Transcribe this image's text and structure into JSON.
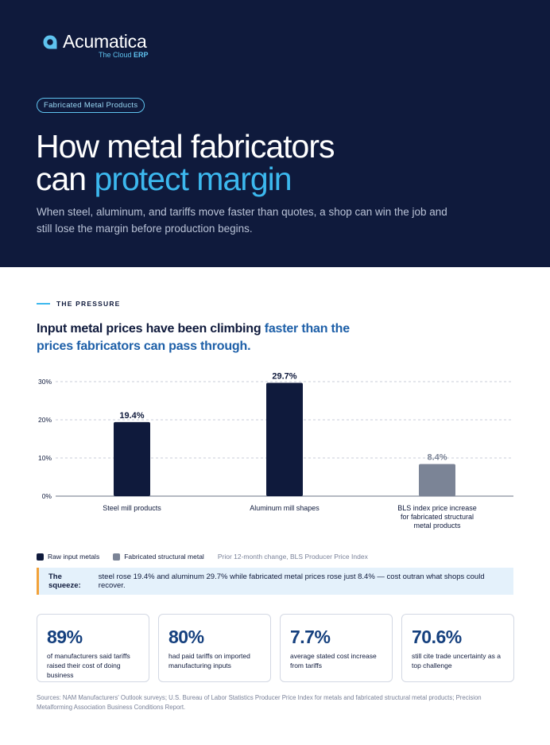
{
  "brand": {
    "name": "Acumatica",
    "tagline_prefix": "The Cloud",
    "tagline_bold": "ERP"
  },
  "hero": {
    "pill": "Fabricated Metal Products",
    "title_line1": "How metal fabricators",
    "title_line2_plain": "can",
    "title_line2_accent": "protect margin",
    "lede": "When steel, aluminum, and tariffs move faster than quotes, a shop can win the job and still lose the margin before production begins."
  },
  "section": {
    "label": "THE PRESSURE",
    "heading_plain": "Input metal prices have been climbing",
    "heading_accent": "faster than the prices fabricators can pass through."
  },
  "chart_data": {
    "type": "bar",
    "categories": [
      "Steel mill products",
      "Aluminum mill shapes",
      "BLS index price increase for fabricated structural metal products"
    ],
    "values": [
      19.4,
      29.7,
      8.4
    ],
    "value_labels": [
      "19.4%",
      "29.7%",
      "8.4%"
    ],
    "series_of_bar": [
      "raw",
      "raw",
      "fab"
    ],
    "y_ticks": [
      "0%",
      "10%",
      "20%",
      "30%"
    ],
    "y_tick_values": [
      0,
      10,
      20,
      30
    ],
    "ylim": [
      0,
      30
    ],
    "grid": true,
    "colors": {
      "raw": "#0f1a3c",
      "fab": "#7b8496",
      "raw_label": "#0f1a3c",
      "fab_label": "#7b8496"
    },
    "legend": [
      {
        "name": "Raw input metals",
        "color": "#0f1a3c"
      },
      {
        "name": "Fabricated structural metal",
        "color": "#7b8496"
      }
    ],
    "note": "Prior 12-month change, BLS Producer Price Index"
  },
  "squeeze": {
    "lead": "The squeeze:",
    "text": "steel rose 19.4% and aluminum 29.7% while fabricated metal prices rose just 8.4% — cost outran what shops could recover."
  },
  "stats": [
    {
      "value": "89%",
      "desc": "of manufacturers said tariffs raised their cost of doing business"
    },
    {
      "value": "80%",
      "desc": "had paid tariffs on imported manufacturing inputs"
    },
    {
      "value": "7.7%",
      "desc": "average stated cost increase from tariffs"
    },
    {
      "value": "70.6%",
      "desc": "still cite trade uncertainty as a top challenge"
    }
  ],
  "sources": "Sources: NAM Manufacturers' Outlook surveys; U.S. Bureau of Labor Statistics Producer Price Index for metals and fabricated structural metal products; Precision Metalforming Association Business Conditions Report.",
  "colors": {
    "navy": "#0f1a3c",
    "accent_blue": "#3cb8ee",
    "stat_blue": "#15407e",
    "callout_bg": "#e4f1fb",
    "callout_bar": "#f2a23a"
  }
}
